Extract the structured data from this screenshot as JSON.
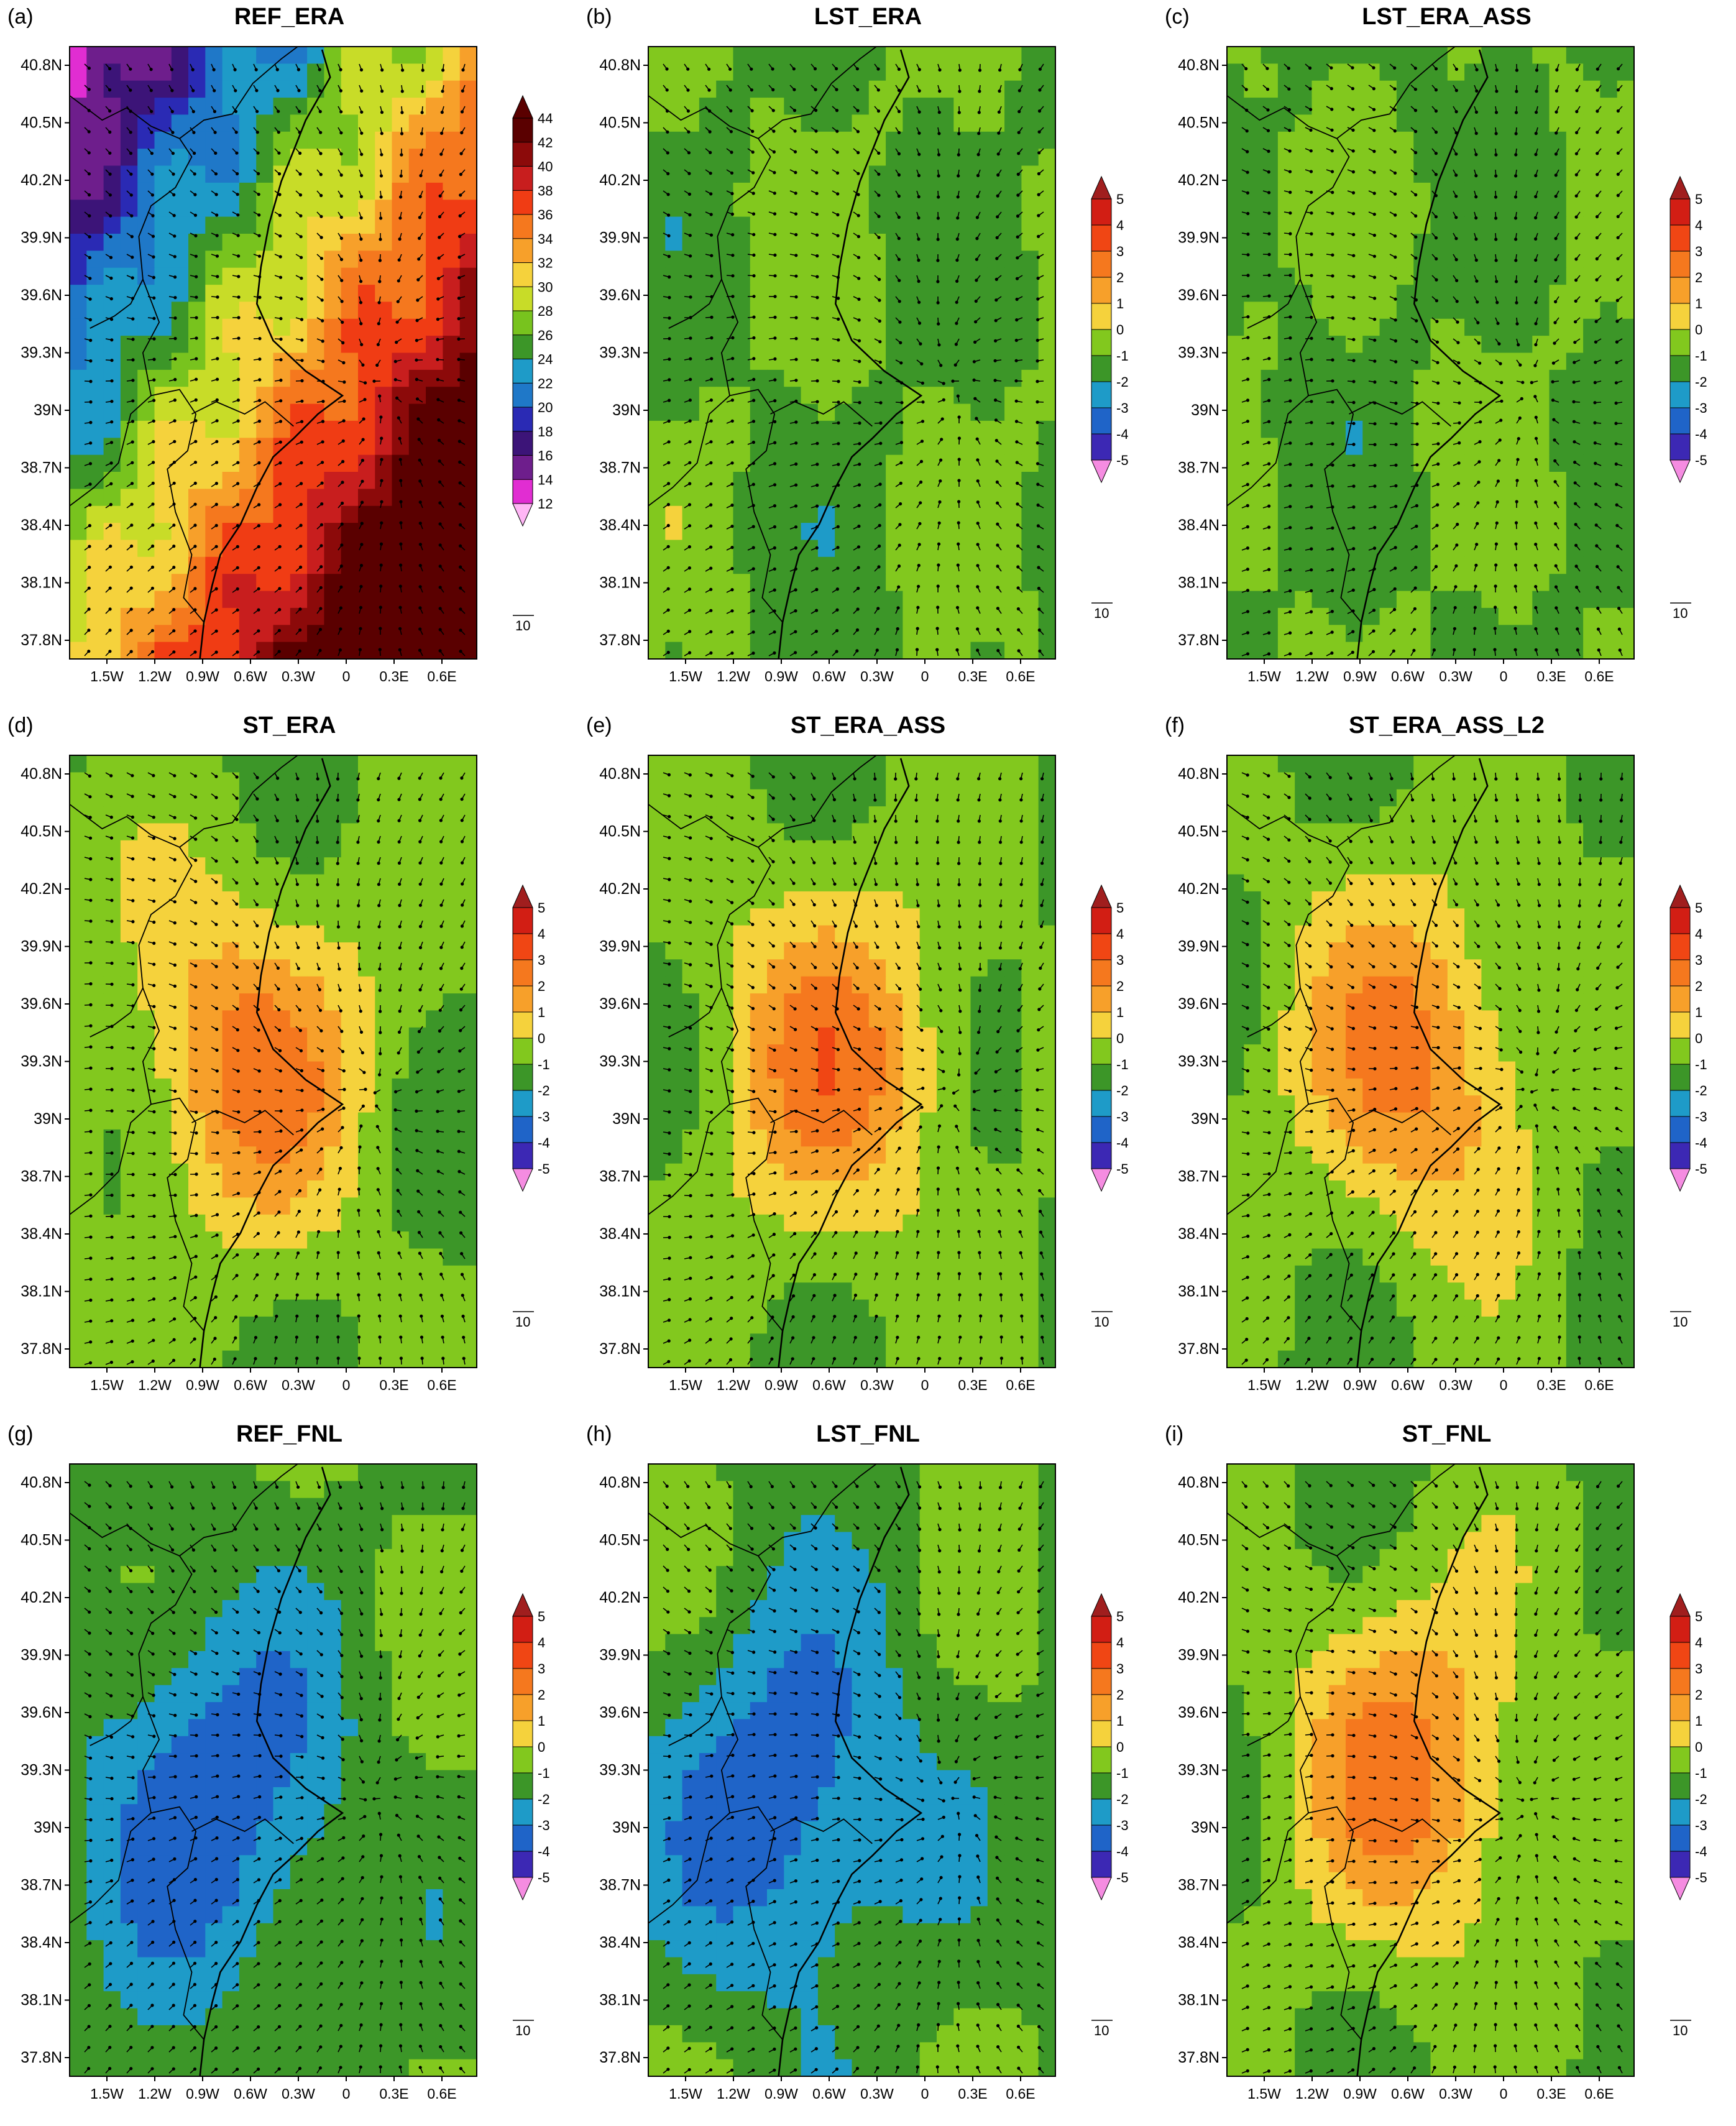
{
  "lat_ticks": [
    "40.8N",
    "40.5N",
    "40.2N",
    "39.9N",
    "39.6N",
    "39.3N",
    "39N",
    "38.7N",
    "38.4N",
    "38.1N",
    "37.8N"
  ],
  "lon_ticks": [
    "1.5W",
    "1.2W",
    "0.9W",
    "0.6W",
    "0.3W",
    "0",
    "0.3E",
    "0.6E"
  ],
  "colorbars": {
    "absolute": {
      "labels": [
        "44",
        "42",
        "40",
        "38",
        "36",
        "34",
        "32",
        "30",
        "28",
        "26",
        "24",
        "22",
        "20",
        "18",
        "16",
        "14",
        "12"
      ],
      "colors": [
        "#5a0000",
        "#8c0a0a",
        "#c81e1e",
        "#f03c14",
        "#f5781e",
        "#f7a02a",
        "#f5d23c",
        "#c8dc28",
        "#78c31e",
        "#3c9628",
        "#1e9bc8",
        "#1f78c8",
        "#2a2ab4",
        "#3c1478",
        "#6e1e8c",
        "#e12dd2",
        "#ff6efa",
        "#ffb6f5",
        "#783232"
      ],
      "above_color": "#5a0000",
      "below_color": "#ffb6f5"
    },
    "difference": {
      "labels": [
        "5",
        "4",
        "3",
        "2",
        "1",
        "0",
        "-1",
        "-2",
        "-3",
        "-4",
        "-5"
      ],
      "colors": [
        "#d21e14",
        "#f04614",
        "#f5781e",
        "#f7a02a",
        "#f5d23c",
        "#82c81e",
        "#3c9628",
        "#1e9bc8",
        "#1f64c8",
        "#3c28b4",
        "#aa1ea0"
      ],
      "above_color": "#a01e1e",
      "below_color": "#f58ce1"
    }
  },
  "vector_reference": "10",
  "panels": [
    {
      "letter": "(a)",
      "title": "REF_ERA",
      "scale": "absolute"
    },
    {
      "letter": "(b)",
      "title": "LST_ERA",
      "scale": "difference"
    },
    {
      "letter": "(c)",
      "title": "LST_ERA_ASS",
      "scale": "difference"
    },
    {
      "letter": "(d)",
      "title": "ST_ERA",
      "scale": "difference"
    },
    {
      "letter": "(e)",
      "title": "ST_ERA_ASS",
      "scale": "difference"
    },
    {
      "letter": "(f)",
      "title": "ST_ERA_ASS_L2",
      "scale": "difference"
    },
    {
      "letter": "(g)",
      "title": "REF_FNL",
      "scale": "difference"
    },
    {
      "letter": "(h)",
      "title": "LST_FNL",
      "scale": "difference"
    },
    {
      "letter": "(i)",
      "title": "ST_FNL",
      "scale": "difference"
    }
  ]
}
